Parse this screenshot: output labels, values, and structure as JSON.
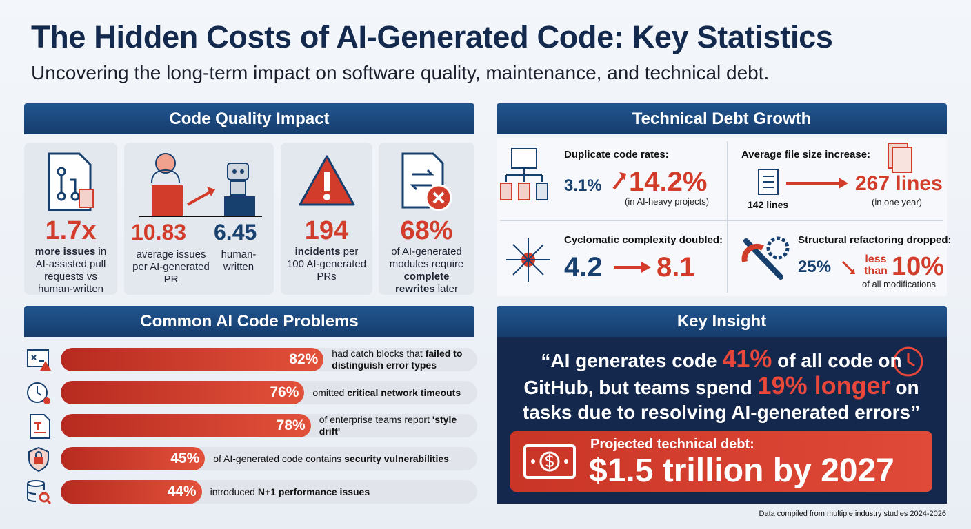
{
  "header": {
    "title": "The Hidden Costs of AI-Generated Code: Key Statistics",
    "subtitle": "Uncovering the long-term impact on software quality, maintenance, and technical debt."
  },
  "code_quality": {
    "heading": "Code Quality Impact",
    "cards": [
      {
        "stat": "1.7x",
        "bold": "more issues",
        "text": " in AI-assisted pull requests vs human-written"
      },
      {
        "stat_a": "10.83",
        "text_a": "average issues per AI-generated PR",
        "stat_b": "6.45",
        "text_b": "human-written"
      },
      {
        "stat": "194",
        "bold": "incidents",
        "text": " per 100 AI-generated PRs"
      },
      {
        "stat": "68%",
        "text": "of AI-generated modules require ",
        "bold": "complete rewrites",
        "text_end": " later"
      }
    ]
  },
  "tech_debt": {
    "heading": "Technical Debt Growth",
    "items": [
      {
        "label": "Duplicate code rates:",
        "from": "3.1%",
        "to": "14.2%",
        "note": "(in AI-heavy projects)"
      },
      {
        "label": "Average file size increase:",
        "from": "142 lines",
        "to": "267 lines",
        "note": "(in one year)"
      },
      {
        "label": "Cyclomatic complexity doubled:",
        "from": "4.2",
        "to": "8.1"
      },
      {
        "label": "Structural refactoring dropped:",
        "from": "25%",
        "to_prefix": "less than",
        "to": "10%",
        "note": "of all modifications"
      }
    ]
  },
  "problems": {
    "heading": "Common AI Code Problems",
    "items": [
      {
        "value": 82,
        "label": "82%",
        "text": "had catch blocks that ",
        "bold": "failed to distinguish error types"
      },
      {
        "value": 76,
        "label": "76%",
        "text": "omitted ",
        "bold": "critical network timeouts"
      },
      {
        "value": 78,
        "label": "78%",
        "text": "of enterprise teams report ",
        "bold": "'style drift'"
      },
      {
        "value": 45,
        "label": "45%",
        "text": "of AI-generated code contains ",
        "bold": "security vulnerabilities"
      },
      {
        "value": 44,
        "label": "44%",
        "text": "introduced ",
        "bold": "N+1 performance issues"
      }
    ]
  },
  "insight": {
    "heading": "Key Insight",
    "quote": [
      "“AI generates code ",
      "41%",
      " of all code on GitHub, but teams spend ",
      "19% longer",
      " on tasks due to resolving AI-generated errors”"
    ],
    "debt_label": "Projected technical debt:",
    "debt_value": "$1.5 trillion by 2027"
  },
  "footer": "Data compiled from multiple industry studies 2024-2026"
}
